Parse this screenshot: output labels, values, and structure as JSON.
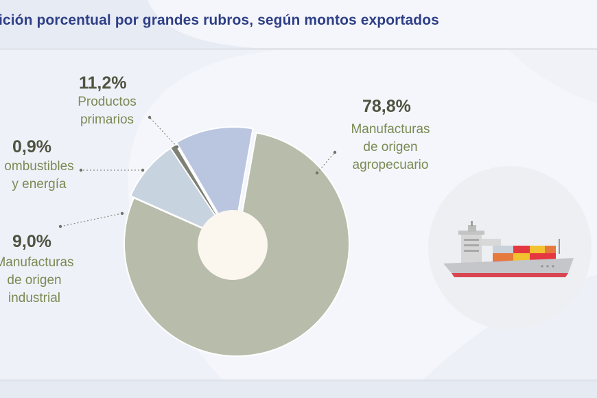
{
  "title": "ición porcentual por grandes rubros, según montos exportados",
  "colors": {
    "title": "#2e3f86",
    "manufacturas_agro": "#b8bcab",
    "productos_primarios": "#bac6e0",
    "combustibles": "#7c8075",
    "manufacturas_industrial": "#c7d3de",
    "hole": "#fbf6ee",
    "value_text": "#4f5441",
    "label_text": "#7a8a52"
  },
  "icons": {
    "ship": "cargo-ship-icon"
  },
  "chart_data": {
    "type": "pie",
    "donut": true,
    "title": "ición porcentual por grandes rubros, según montos exportados",
    "slices": [
      {
        "value": 78.8,
        "value_label": "78,8%",
        "label_lines": [
          "Manufacturas",
          "de origen",
          "agropecuario"
        ],
        "color": "#b8bcab"
      },
      {
        "value": 9.0,
        "value_label": "9,0%",
        "label_lines": [
          "Manufacturas",
          "de origen",
          "industrial"
        ],
        "color": "#c7d3de"
      },
      {
        "value": 0.9,
        "value_label": "0,9%",
        "label_lines": [
          "ombustibles",
          "y energía"
        ],
        "color": "#7c8075"
      },
      {
        "value": 11.2,
        "value_label": "11,2%",
        "label_lines": [
          "Productos",
          "primarios"
        ],
        "color": "#bac6e0"
      }
    ]
  }
}
